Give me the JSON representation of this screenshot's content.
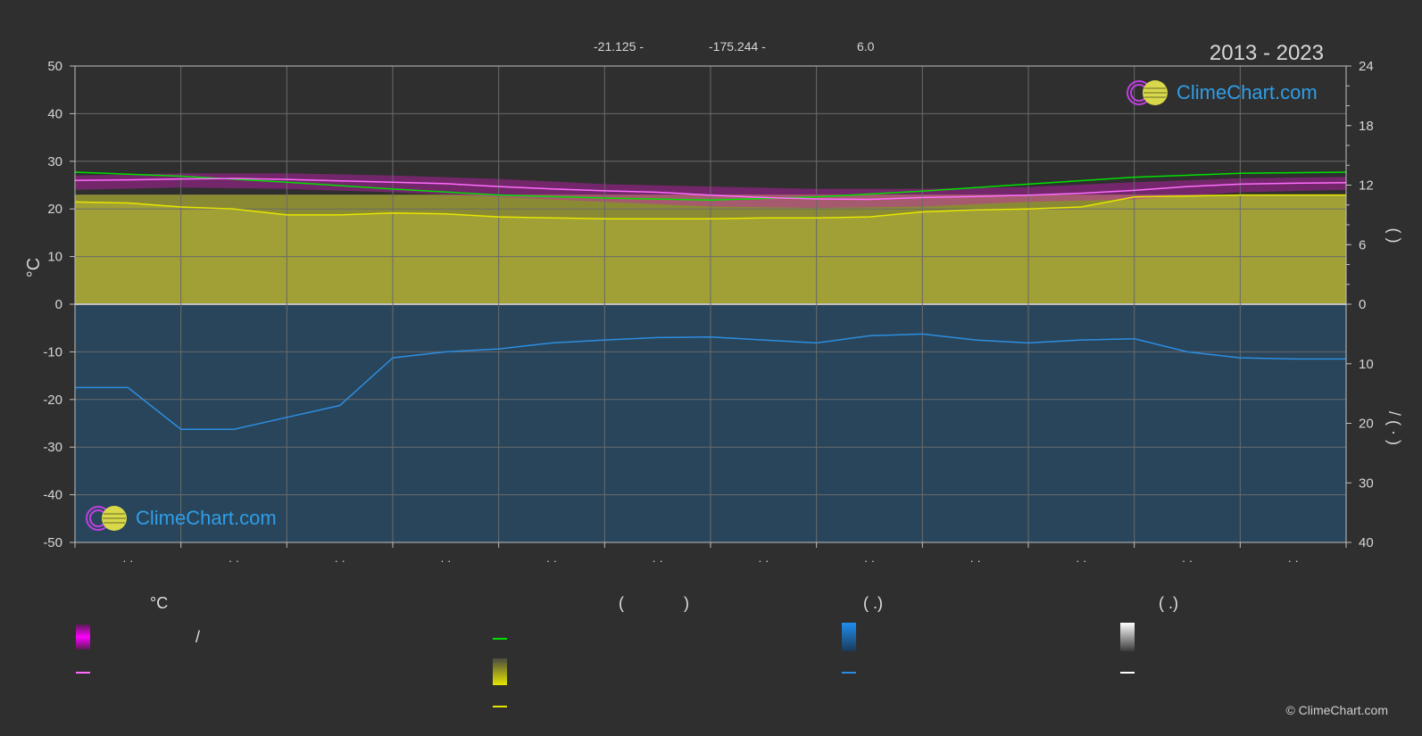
{
  "header": {
    "latitude": "-21.125 -",
    "longitude": "-175.244 -",
    "elevation": "6.0",
    "period": "2013 - 2023"
  },
  "branding": {
    "logo_text": "ClimeChart.com",
    "copyright": "© ClimeChart.com"
  },
  "colors": {
    "background": "#2f2f2f",
    "sunshine_line": "#00e000",
    "sun_hours_fill": "#c8c83a",
    "sun_hours_line": "#e6e600",
    "temp_range_fill": "#c81eb4",
    "temp_line": "#ff6cff",
    "rain_fill": "#1f6fae",
    "rain_line": "#2c8de0",
    "grid": "#6a6a6a",
    "axis_text": "#d6d6d6"
  },
  "legend": {
    "col1": {
      "header": "°C",
      "slash": "/"
    },
    "col2": {
      "header_left": "(",
      "header_right": ")"
    },
    "col3": {
      "header": "(   .)"
    },
    "col4": {
      "header": "(   .)"
    }
  },
  "chart_data": {
    "type": "area",
    "x_tick_labels": [
      "· ·",
      "· ·",
      "· ·",
      "· ·",
      "· ·",
      "· ·",
      "· ·",
      "· ·",
      "· ·",
      "· ·",
      "· ·",
      "· ·"
    ],
    "y_left": {
      "label": "°C",
      "ticks": [
        50,
        40,
        30,
        20,
        10,
        0,
        -10,
        -20,
        -30,
        -40,
        -50
      ],
      "range": [
        -50,
        50
      ]
    },
    "y_right_top": {
      "ticks": [
        24,
        18,
        12,
        6,
        0
      ],
      "range": [
        0,
        24
      ],
      "label": "(    )"
    },
    "y_right_bottom": {
      "ticks": [
        0,
        10,
        20,
        30,
        40
      ],
      "range": [
        0,
        40
      ],
      "label": "/ (  · )"
    },
    "grid": true,
    "series": [
      {
        "key": "daylight",
        "style": "line",
        "axis": "right_top",
        "x": [
          0,
          1,
          2,
          3,
          4,
          5,
          6,
          7,
          8,
          9,
          10,
          11,
          12
        ],
        "values": [
          13.3,
          12.9,
          12.3,
          11.6,
          11.0,
          10.7,
          10.5,
          10.8,
          11.4,
          12.1,
          12.8,
          13.2,
          13.3
        ]
      },
      {
        "key": "sunshine",
        "style": "line+area",
        "axis": "right_top",
        "x": [
          0,
          0.5,
          1,
          1.5,
          2,
          2.5,
          3,
          3.5,
          4,
          4.5,
          5,
          5.5,
          6,
          6.5,
          7,
          7.5,
          8,
          8.5,
          9,
          9.5,
          10,
          10.5,
          11,
          11.5,
          12
        ],
        "values": [
          10.3,
          10.2,
          9.8,
          9.6,
          9.0,
          9.0,
          9.2,
          9.1,
          8.8,
          8.7,
          8.6,
          8.6,
          8.6,
          8.7,
          8.7,
          8.8,
          9.3,
          9.5,
          9.6,
          9.8,
          10.8,
          10.9,
          11.0,
          11.0,
          11.0
        ]
      },
      {
        "key": "temperature_mean",
        "style": "line",
        "axis": "left",
        "x": [
          0,
          0.5,
          1,
          1.5,
          2,
          2.5,
          3,
          3.5,
          4,
          4.5,
          5,
          5.5,
          6,
          6.5,
          7,
          7.5,
          8,
          8.5,
          9,
          9.5,
          10,
          10.5,
          11,
          11.5,
          12
        ],
        "values": [
          26.0,
          26.1,
          26.3,
          26.4,
          26.2,
          25.9,
          25.6,
          25.3,
          24.7,
          24.2,
          23.8,
          23.5,
          22.9,
          22.4,
          22.1,
          22.0,
          22.4,
          22.6,
          22.9,
          23.3,
          23.9,
          24.7,
          25.2,
          25.4,
          25.5
        ]
      },
      {
        "key": "temperature_range",
        "style": "band",
        "axis": "left",
        "x": [
          0,
          1,
          2,
          3,
          4,
          5,
          6,
          7,
          8,
          9,
          10,
          11,
          12
        ],
        "low": [
          24.0,
          24.5,
          24.2,
          23.5,
          22.5,
          21.5,
          20.5,
          20.2,
          20.5,
          21.5,
          22.0,
          23.5,
          24.0
        ],
        "high": [
          27.0,
          27.5,
          27.5,
          27.0,
          26.3,
          25.2,
          24.7,
          24.2,
          24.2,
          24.6,
          25.6,
          26.4,
          26.7
        ]
      },
      {
        "key": "precipitation",
        "style": "line+area",
        "axis": "right_bottom",
        "x": [
          0,
          0.5,
          1,
          1.5,
          2,
          2.5,
          3,
          3.5,
          4,
          4.5,
          5,
          5.5,
          6,
          6.5,
          7,
          7.5,
          8,
          8.5,
          9,
          9.5,
          10,
          10.5,
          11,
          11.5,
          12
        ],
        "values": [
          14.0,
          14.0,
          21.0,
          21.0,
          19.0,
          17.0,
          9.0,
          8.0,
          7.5,
          6.5,
          6.0,
          5.6,
          5.5,
          6.0,
          6.5,
          5.3,
          5.0,
          6.0,
          6.5,
          6.0,
          5.8,
          8.0,
          9.0,
          9.2,
          9.2
        ]
      }
    ]
  }
}
